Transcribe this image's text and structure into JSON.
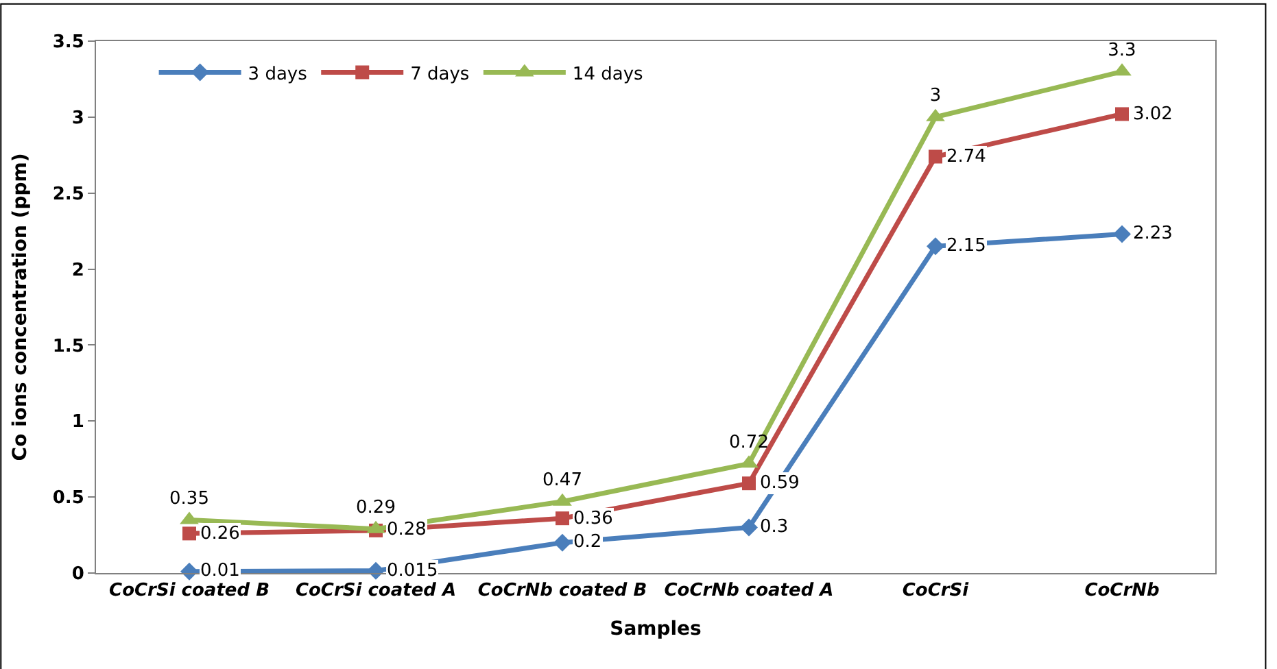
{
  "chart_data": {
    "type": "line",
    "xlabel": "Samples",
    "ylabel": "Co ions concentration (ppm)",
    "categories": [
      "CoCrSi coated B",
      "CoCrSi coated A",
      "CoCrNb coated B",
      "CoCrNb coated A",
      "CoCrSi",
      "CoCrNb"
    ],
    "series": [
      {
        "name": "3 days",
        "color": "#4a7ebb",
        "marker": "diamond",
        "values": [
          0.01,
          0.015,
          0.2,
          0.3,
          2.15,
          2.23
        ]
      },
      {
        "name": "7 days",
        "color": "#be4b48",
        "marker": "square",
        "values": [
          0.26,
          0.28,
          0.36,
          0.59,
          2.74,
          3.02
        ]
      },
      {
        "name": "14 days",
        "color": "#98b954",
        "marker": "triangle",
        "values": [
          0.35,
          0.29,
          0.47,
          0.72,
          3,
          3.3
        ]
      }
    ],
    "ylim": [
      0,
      3.5
    ],
    "yticks": [
      0,
      0.5,
      1,
      1.5,
      2,
      2.5,
      3,
      3.5
    ],
    "grid": false,
    "legend": "top",
    "data_labels": true,
    "line_style": "solid"
  }
}
